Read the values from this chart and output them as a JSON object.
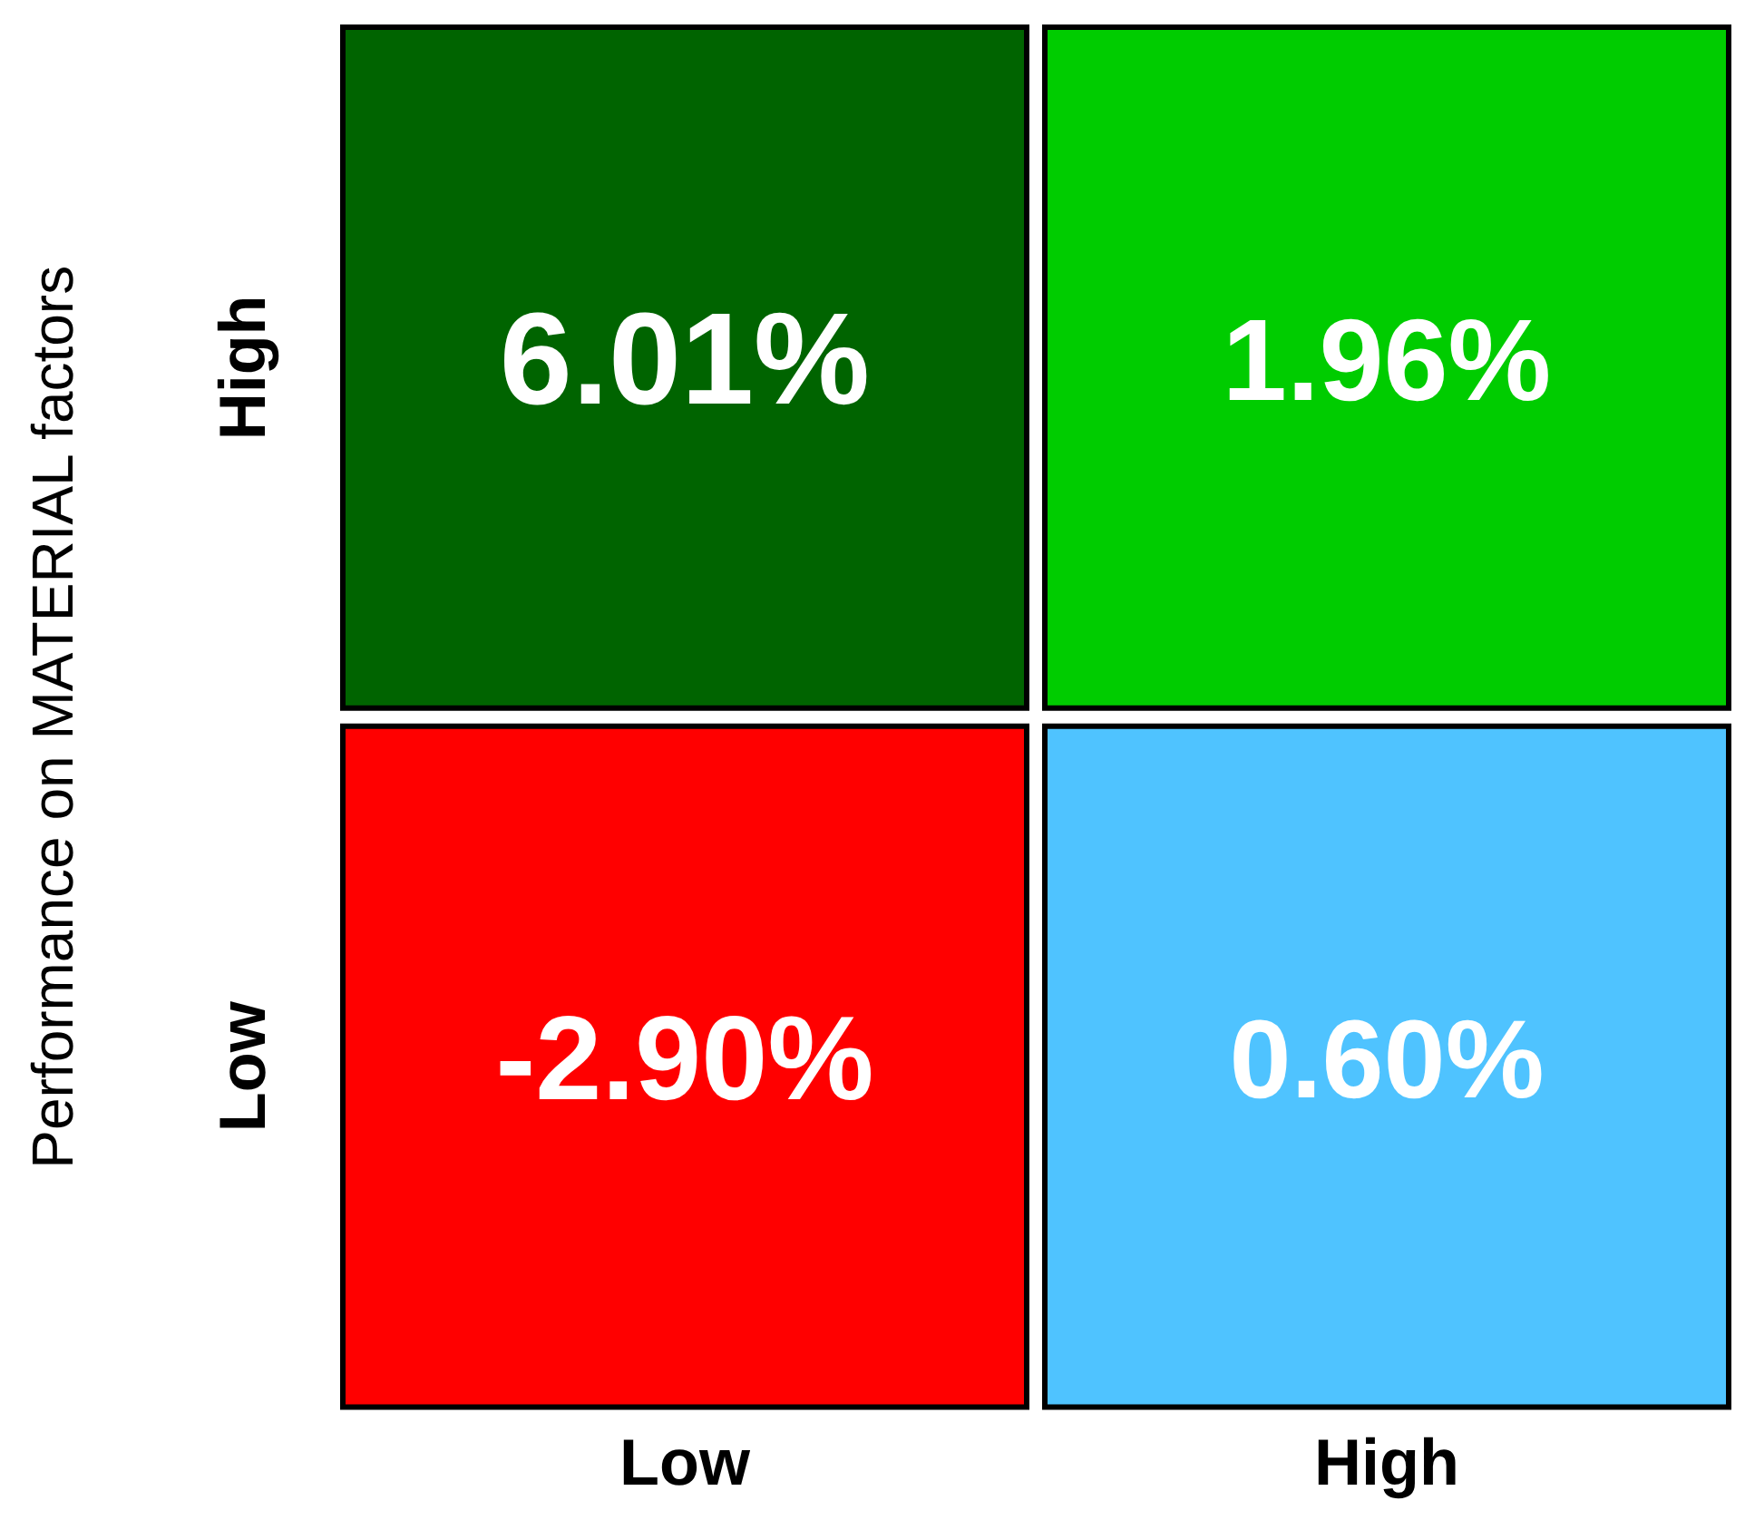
{
  "chart_data": {
    "type": "heatmap",
    "ylabel": "Performance on MATERIAL factors",
    "categories": [
      "Low",
      "High"
    ],
    "y_categories": [
      "High",
      "Low"
    ],
    "cells": [
      [
        6.01,
        1.96
      ],
      [
        -2.9,
        0.6
      ]
    ],
    "cell_labels": [
      [
        "6.01%",
        "1.96%"
      ],
      [
        "-2.90%",
        "0.60%"
      ]
    ],
    "colors": [
      [
        "#006400",
        "#00cc00"
      ],
      [
        "#ff0000",
        "#4fc3ff"
      ]
    ]
  }
}
